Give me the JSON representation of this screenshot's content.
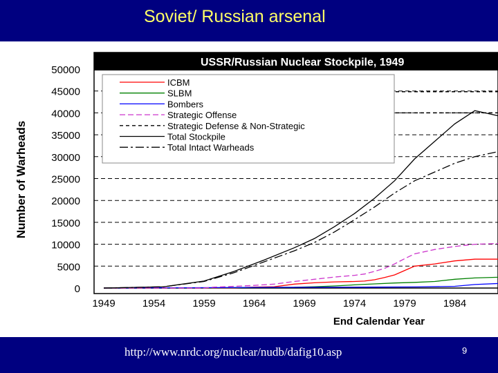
{
  "slide": {
    "title": "Soviet/  Russian arsenal",
    "source": "http://www.nrdc.org/nuclear/nudb/dafig10.asp",
    "page_number": "9"
  },
  "colors": {
    "bar": "#000080",
    "title_text": "#ffff66",
    "chart_title_bg": "#000000",
    "chart_title_text": "#ffffff"
  },
  "chart_data": {
    "type": "line",
    "title": "USSR/Russian Nuclear Stockpile, 1949",
    "xlabel": "End Calendar Year",
    "ylabel": "Number of Warheads",
    "xlim": [
      1949,
      1989
    ],
    "ylim": [
      0,
      50000
    ],
    "x_ticks": [
      1949,
      1954,
      1959,
      1964,
      1969,
      1974,
      1979,
      1984
    ],
    "y_ticks": [
      0,
      5000,
      10000,
      15000,
      20000,
      25000,
      30000,
      35000,
      40000,
      45000,
      50000
    ],
    "grid": "horizontal-dashed",
    "legend_position": "top-left",
    "series": [
      {
        "name": "ICBM",
        "color": "#ff0000",
        "dash": "solid",
        "x": [
          1949,
          1959,
          1960,
          1962,
          1964,
          1966,
          1968,
          1970,
          1972,
          1974,
          1975,
          1976,
          1977,
          1978,
          1979,
          1980,
          1982,
          1984,
          1986,
          1989
        ],
        "y": [
          0,
          0,
          10,
          40,
          200,
          300,
          900,
          1200,
          1400,
          1500,
          1600,
          1900,
          2400,
          3000,
          4000,
          5000,
          5500,
          6200,
          6600,
          6600
        ]
      },
      {
        "name": "SLBM",
        "color": "#008000",
        "dash": "solid",
        "x": [
          1949,
          1957,
          1960,
          1964,
          1968,
          1970,
          1972,
          1974,
          1976,
          1978,
          1980,
          1982,
          1984,
          1986,
          1989
        ],
        "y": [
          0,
          0,
          60,
          120,
          180,
          300,
          480,
          720,
          950,
          1150,
          1300,
          1500,
          2000,
          2300,
          2500
        ]
      },
      {
        "name": "Bombers",
        "color": "#0000ff",
        "dash": "solid",
        "x": [
          1949,
          1955,
          1960,
          1965,
          1970,
          1975,
          1980,
          1984,
          1986,
          1989
        ],
        "y": [
          0,
          50,
          100,
          150,
          180,
          200,
          250,
          400,
          800,
          1100
        ]
      },
      {
        "name": "Strategic Offense",
        "color": "#cc33cc",
        "dash": "8,4",
        "x": [
          1949,
          1959,
          1960,
          1962,
          1964,
          1966,
          1968,
          1970,
          1972,
          1974,
          1975,
          1976,
          1977,
          1978,
          1979,
          1980,
          1982,
          1984,
          1986,
          1989
        ],
        "y": [
          0,
          0,
          200,
          400,
          600,
          900,
          1500,
          2000,
          2500,
          2900,
          3200,
          3800,
          4500,
          5500,
          6700,
          7800,
          8800,
          9500,
          10000,
          10200
        ]
      },
      {
        "name": "Strategic Defense & Non-Strategic",
        "color": "#000000",
        "dash": "5,4",
        "x": [],
        "y": []
      },
      {
        "name": "Total Stockpile",
        "color": "#000000",
        "dash": "solid",
        "x": [
          1949,
          1955,
          1959,
          1962,
          1965,
          1968,
          1970,
          1972,
          1974,
          1976,
          1978,
          1980,
          1982,
          1984,
          1986,
          1987,
          1989
        ],
        "y": [
          0,
          300,
          1600,
          3800,
          6400,
          9200,
          11300,
          14000,
          17000,
          20500,
          24500,
          29500,
          33500,
          37500,
          40500,
          40000,
          39000
        ]
      },
      {
        "name": "Total Intact Warheads",
        "color": "#000000",
        "dash": "12,4,3,4",
        "x": [
          1949,
          1955,
          1959,
          1962,
          1965,
          1968,
          1970,
          1972,
          1974,
          1976,
          1978,
          1980,
          1982,
          1984,
          1986,
          1988,
          1989
        ],
        "y": [
          0,
          300,
          1500,
          3500,
          6000,
          8500,
          10400,
          12800,
          15600,
          18500,
          21700,
          24500,
          26500,
          28500,
          30000,
          31000,
          31500
        ]
      }
    ]
  }
}
